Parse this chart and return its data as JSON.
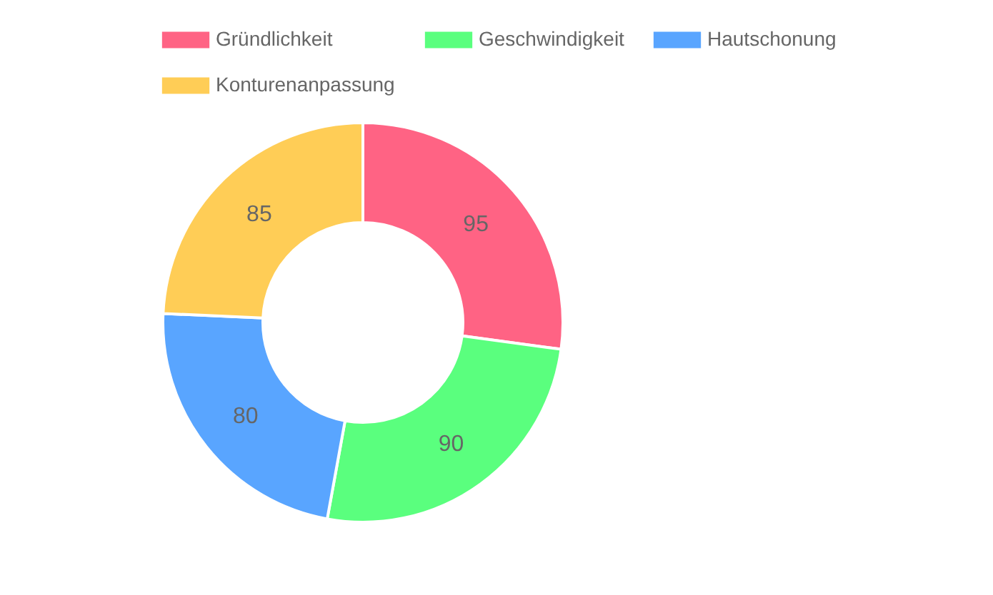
{
  "chart_data": {
    "type": "donut",
    "categories": [
      "Gründlichkeit",
      "Geschwindigkeit",
      "Hautschonung",
      "Konturenanpassung"
    ],
    "values": [
      95,
      90,
      80,
      85
    ],
    "colors": [
      "#ff6384",
      "#5aff7e",
      "#59a5ff",
      "#ffcd56"
    ],
    "data_labels": true,
    "legend": "top"
  }
}
